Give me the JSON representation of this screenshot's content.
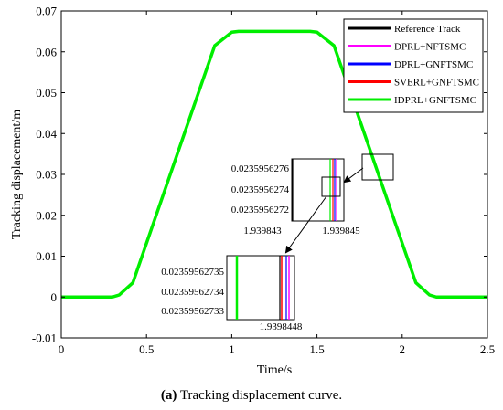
{
  "chart_data": {
    "type": "line",
    "title": "",
    "caption_bold": "(a)",
    "caption_rest": " Tracking displacement curve.",
    "xlabel": "Time/s",
    "ylabel": "Tracking displacement/m",
    "xlim": [
      0,
      2.5
    ],
    "ylim": [
      -0.01,
      0.07
    ],
    "xticks": [
      0,
      0.5,
      1,
      1.5,
      2,
      2.5
    ],
    "xtick_labels": [
      "0",
      "0.5",
      "1",
      "1.5",
      "2",
      "2.5"
    ],
    "yticks": [
      -0.01,
      0,
      0.01,
      0.02,
      0.03,
      0.04,
      0.05,
      0.06,
      0.07
    ],
    "ytick_labels": [
      "-0.01",
      "0",
      "0.01",
      "0.02",
      "0.03",
      "0.04",
      "0.05",
      "0.06",
      "0.07"
    ],
    "grid": false,
    "legend_position": "top-right",
    "series": [
      {
        "name": "Reference Track",
        "color": "#000000"
      },
      {
        "name": "DPRL+NFTSMC",
        "color": "#ff00ff"
      },
      {
        "name": "DPRL+GNFTSMC",
        "color": "#0000ff"
      },
      {
        "name": "SVERL+GNFTSMC",
        "color": "#ff0000"
      },
      {
        "name": "IDPRL+GNFTSMC",
        "color": "#00ee00"
      }
    ],
    "curve": {
      "x": [
        0,
        0.3,
        0.34,
        0.42,
        0.9,
        1.0,
        1.04,
        1.46,
        1.5,
        1.6,
        2.08,
        2.16,
        2.2,
        2.5
      ],
      "y": [
        0,
        0,
        0.0005,
        0.0035,
        0.0615,
        0.0648,
        0.065,
        0.065,
        0.0648,
        0.0615,
        0.0035,
        0.0005,
        0,
        0
      ]
    },
    "zoom1": {
      "xtick_labels": [
        "1.939843",
        "1.939845"
      ],
      "ytick_labels": [
        "0.0235956276",
        "0.0235956274",
        "0.0235956272"
      ]
    },
    "zoom2": {
      "xtick_labels": [
        "1.9398448"
      ],
      "ytick_labels": [
        "0.02359562735",
        "0.02359562734",
        "0.02359562733"
      ]
    }
  }
}
